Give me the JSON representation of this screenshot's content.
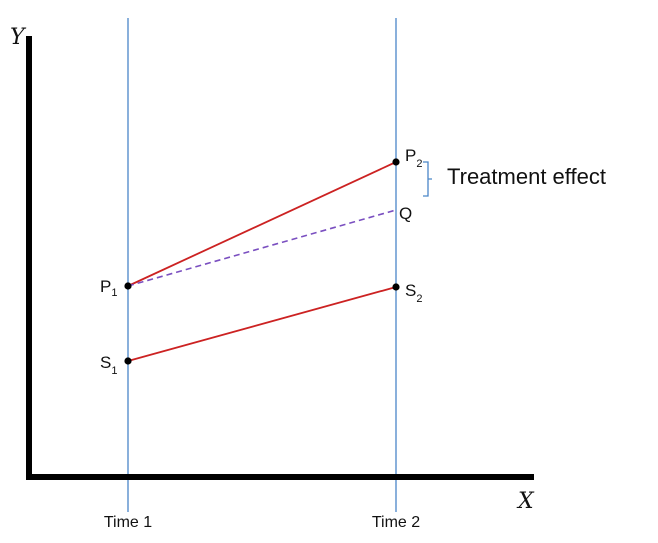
{
  "axes": {
    "y_label": "Y",
    "x_label": "X"
  },
  "time_labels": {
    "t1": "Time 1",
    "t2": "Time 2"
  },
  "points": {
    "p1": {
      "letter": "P",
      "sub": "1"
    },
    "s1": {
      "letter": "S",
      "sub": "1"
    },
    "p2": {
      "letter": "P",
      "sub": "2"
    },
    "s2": {
      "letter": "S",
      "sub": "2"
    },
    "q": {
      "letter": "Q"
    }
  },
  "annotation": {
    "treatment_effect": "Treatment effect"
  },
  "colors": {
    "axis": "#000000",
    "time_line": "#4a86c8",
    "solid_line": "#cc2222",
    "dashed_line": "#7a4fc0",
    "bracket": "#4a86c8",
    "point": "#000000"
  }
}
